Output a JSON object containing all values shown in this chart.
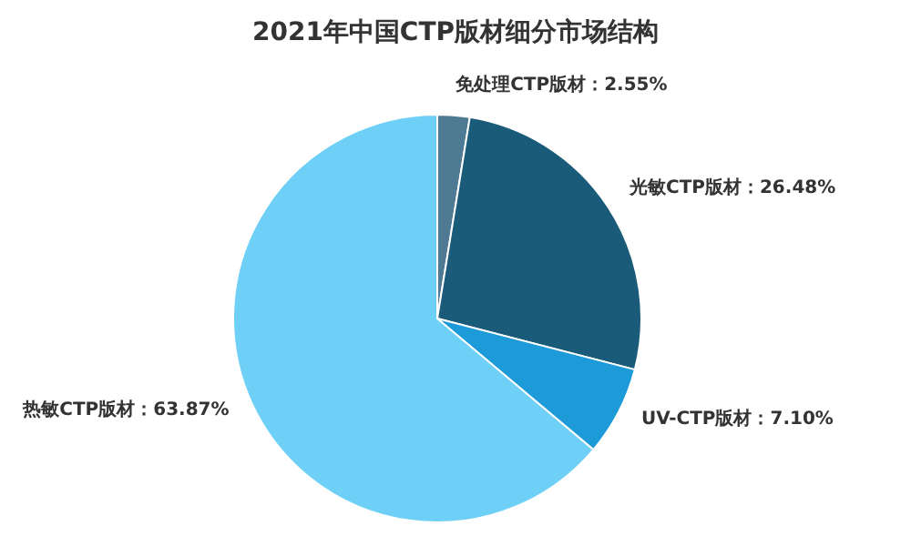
{
  "chart_data": {
    "type": "pie",
    "title": "2021年中国CTP版材细分市场结构",
    "categories": [
      "免处理CTP版材",
      "光敏CTP版材",
      "UV-CTP版材",
      "热敏CTP版材"
    ],
    "values": [
      2.55,
      26.48,
      7.1,
      63.87
    ],
    "value_labels": [
      "2.55%",
      "26.48%",
      "7.10%",
      "63.87%"
    ],
    "colors": [
      "#4f7a93",
      "#1b5b7a",
      "#1d9ad8",
      "#6fd0f7"
    ],
    "legend": false
  }
}
